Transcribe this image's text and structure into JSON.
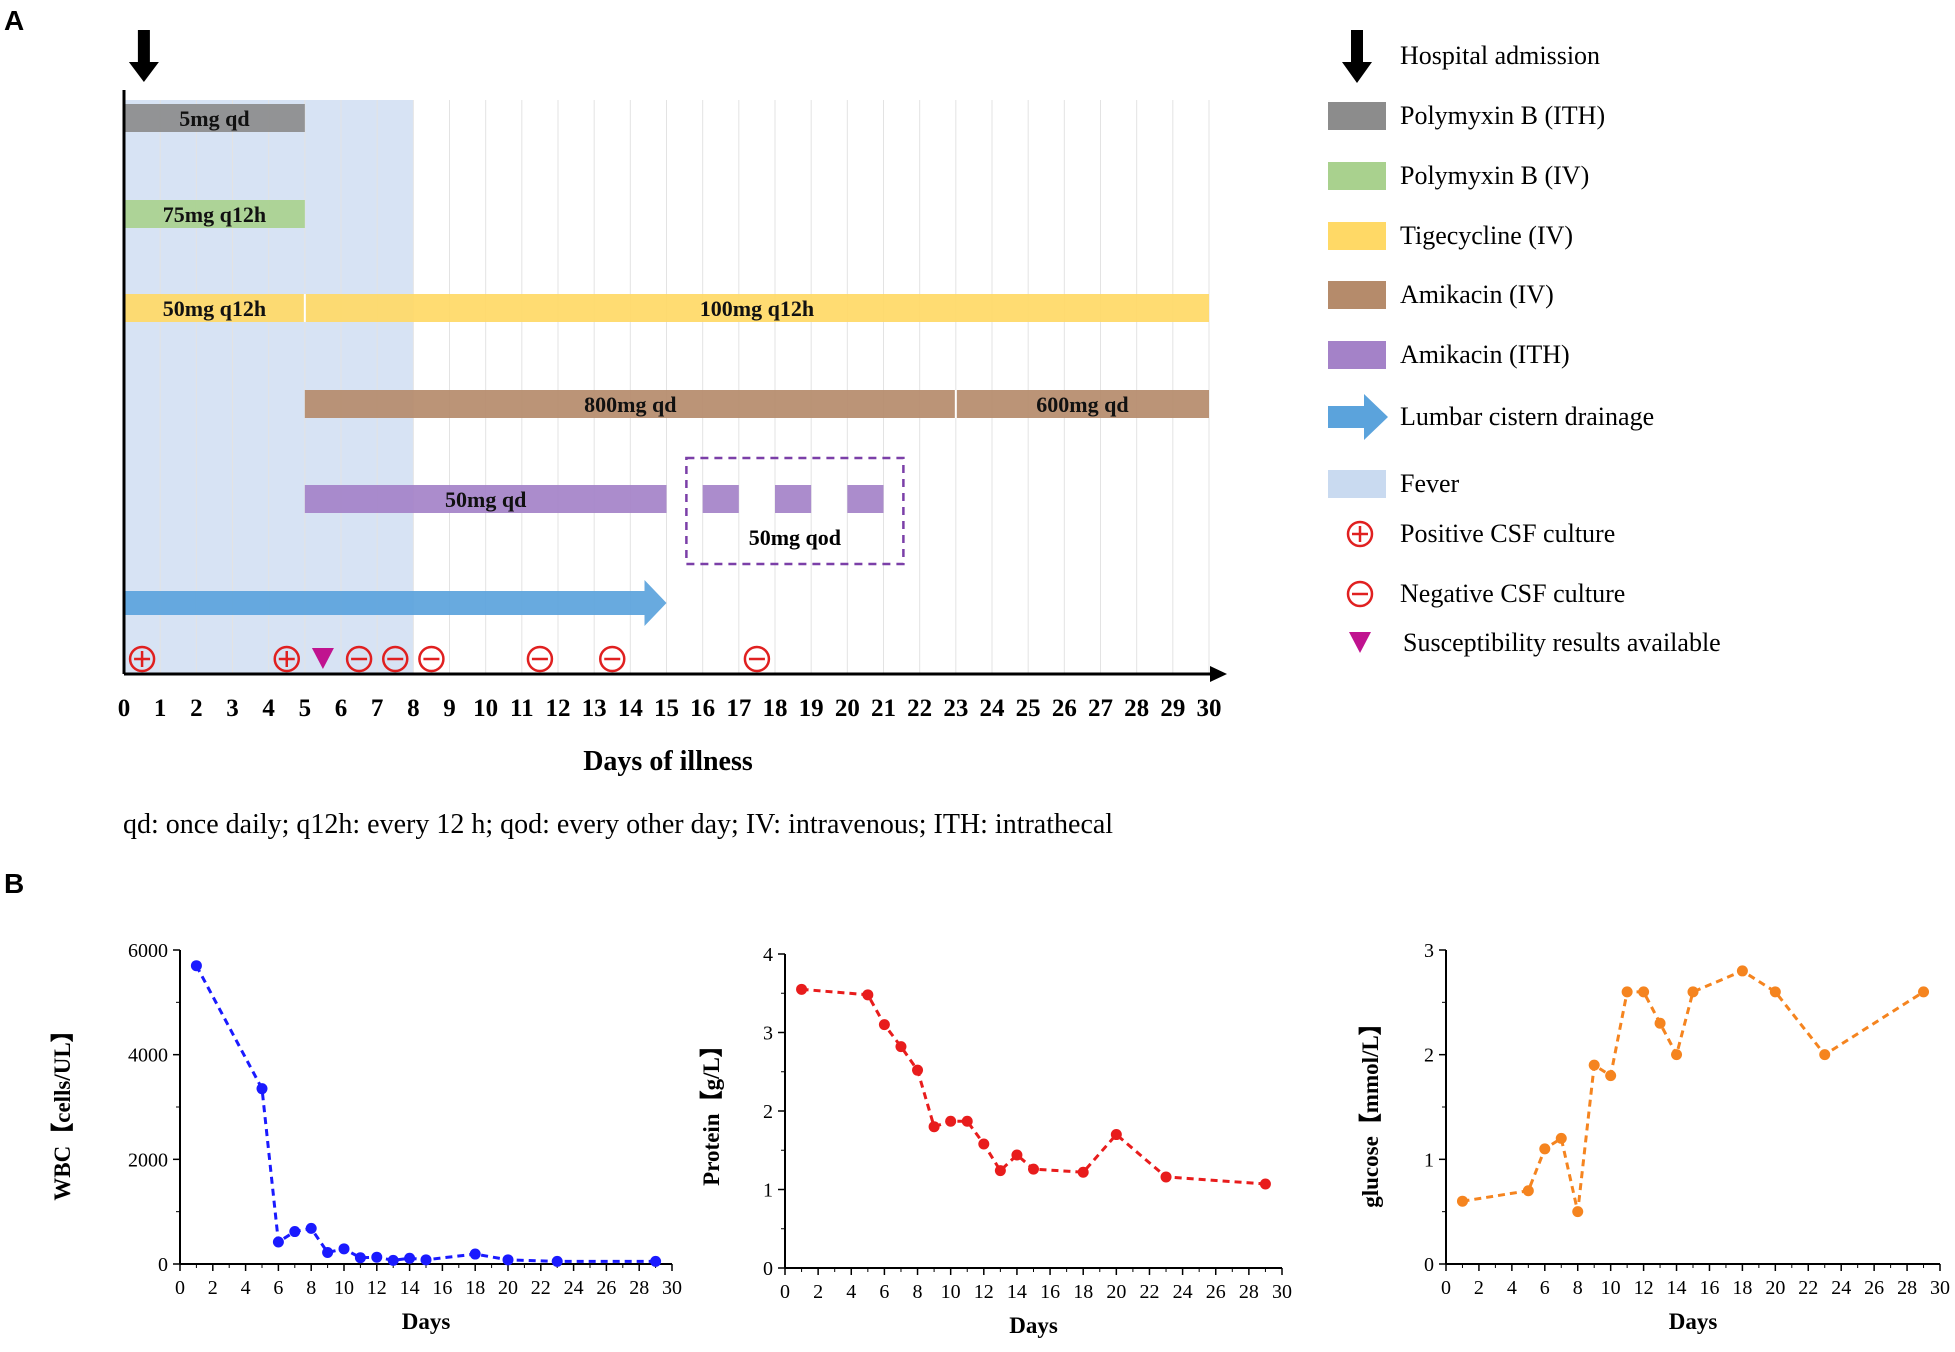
{
  "panel_a": {
    "label": "A",
    "xlabel": "Days of illness",
    "footnote": "qd: once daily; q12h: every 12 h; qod: every other day; IV: intravenous; ITH: intrathecal",
    "qod_label": "50mg qod",
    "legend": [
      {
        "key": "admission",
        "label": "Hospital admission",
        "icon": "down-arrow-icon",
        "color": "#000000"
      },
      {
        "key": "pmb_ith",
        "label": "Polymyxin B (ITH)",
        "icon": "swatch",
        "color": "#8c8c8c"
      },
      {
        "key": "pmb_iv",
        "label": "Polymyxin B (IV)",
        "icon": "swatch",
        "color": "#a9d18e"
      },
      {
        "key": "tige",
        "label": "Tigecycline (IV)",
        "icon": "swatch",
        "color": "#ffd966"
      },
      {
        "key": "ami_iv",
        "label": "Amikacin (IV)",
        "icon": "swatch",
        "color": "#b58b6b"
      },
      {
        "key": "ami_ith",
        "label": "Amikacin (ITH)",
        "icon": "swatch",
        "color": "#a482c8"
      },
      {
        "key": "drain",
        "label": "Lumbar cistern drainage",
        "icon": "right-arrow-icon",
        "color": "#5ba3dc"
      },
      {
        "key": "fever",
        "label": "Fever",
        "icon": "swatch",
        "color": "#c9daf0"
      },
      {
        "key": "pos",
        "label": "Positive CSF culture",
        "icon": "plus-circle-icon",
        "color": "#e02020"
      },
      {
        "key": "neg",
        "label": "Negative CSF culture",
        "icon": "minus-circle-icon",
        "color": "#e02020"
      },
      {
        "key": "susc",
        "label": "Susceptibility results available",
        "icon": "down-triangle-icon",
        "color": "#c0138f"
      }
    ]
  },
  "chart_data": [
    {
      "type": "timeline",
      "xlabel": "Days of illness",
      "xlim": [
        0,
        30
      ],
      "ticks": [
        "0",
        "1",
        "2",
        "3",
        "4",
        "5",
        "6",
        "7",
        "8",
        "9",
        "10",
        "11",
        "12",
        "13",
        "14",
        "15",
        "16",
        "17",
        "18",
        "19",
        "20",
        "21",
        "22",
        "23",
        "24",
        "25",
        "26",
        "27",
        "28",
        "29",
        "30"
      ],
      "admission_day": 0.55,
      "fever": {
        "start": 0,
        "end": 8
      },
      "tracks": [
        {
          "drug": "Polymyxin B (ITH)",
          "color": "#8c8c8c",
          "segments": [
            {
              "start": 0,
              "end": 5,
              "label": "5mg qd"
            }
          ]
        },
        {
          "drug": "Polymyxin B (IV)",
          "color": "#a9d18e",
          "segments": [
            {
              "start": 0,
              "end": 5,
              "label": "75mg q12h"
            }
          ]
        },
        {
          "drug": "Tigecycline (IV)",
          "color": "#ffd966",
          "segments": [
            {
              "start": 0,
              "end": 5,
              "label": "50mg q12h"
            },
            {
              "start": 5,
              "end": 30,
              "label": "100mg q12h"
            }
          ]
        },
        {
          "drug": "Amikacin (IV)",
          "color": "#b58b6b",
          "segments": [
            {
              "start": 5,
              "end": 23,
              "label": "800mg qd"
            },
            {
              "start": 23,
              "end": 30,
              "label": "600mg qd"
            }
          ]
        },
        {
          "drug": "Amikacin (ITH)",
          "color": "#a482c8",
          "segments": [
            {
              "start": 5,
              "end": 15,
              "label": "50mg qd"
            },
            {
              "start": 16,
              "end": 17,
              "label": ""
            },
            {
              "start": 18,
              "end": 19,
              "label": ""
            },
            {
              "start": 20,
              "end": 21,
              "label": ""
            }
          ]
        }
      ],
      "drainage": {
        "start": 0,
        "end": 15
      },
      "cultures": [
        {
          "day": 0.5,
          "result": "positive"
        },
        {
          "day": 4.5,
          "result": "positive"
        },
        {
          "day": 6.5,
          "result": "negative"
        },
        {
          "day": 7.5,
          "result": "negative"
        },
        {
          "day": 8.5,
          "result": "negative"
        },
        {
          "day": 11.5,
          "result": "negative"
        },
        {
          "day": 13.5,
          "result": "negative"
        },
        {
          "day": 17.5,
          "result": "negative"
        }
      ],
      "susceptibility_day": 5.5
    },
    {
      "type": "line",
      "title": "",
      "panel_label": "B",
      "xlabel": "Days",
      "ylabel": "WBC【cells/UL】",
      "color": "#1a1aff",
      "xlim": [
        0,
        30
      ],
      "ylim": [
        0,
        6000
      ],
      "xticks": [
        "0",
        "2",
        "4",
        "6",
        "8",
        "10",
        "12",
        "14",
        "16",
        "18",
        "20",
        "22",
        "24",
        "26",
        "28",
        "30"
      ],
      "yticks": [
        "0",
        "2000",
        "4000",
        "6000"
      ],
      "x": [
        1,
        5,
        6,
        7,
        8,
        9,
        10,
        11,
        12,
        13,
        14,
        15,
        18,
        20,
        23,
        29
      ],
      "y": [
        5700,
        3350,
        420,
        620,
        680,
        220,
        290,
        120,
        130,
        70,
        110,
        80,
        190,
        80,
        50,
        50
      ]
    },
    {
      "type": "line",
      "title": "",
      "xlabel": "Days",
      "ylabel": "Protein【g/L】",
      "color": "#e81c1c",
      "xlim": [
        0,
        30
      ],
      "ylim": [
        0,
        4
      ],
      "xticks": [
        "0",
        "2",
        "4",
        "6",
        "8",
        "10",
        "12",
        "14",
        "16",
        "18",
        "20",
        "22",
        "24",
        "26",
        "28",
        "30"
      ],
      "yticks": [
        "0",
        "1",
        "2",
        "3",
        "4"
      ],
      "x": [
        1,
        5,
        6,
        7,
        8,
        9,
        10,
        11,
        12,
        13,
        14,
        15,
        18,
        20,
        23,
        29
      ],
      "y": [
        3.55,
        3.48,
        3.1,
        2.82,
        2.52,
        1.8,
        1.87,
        1.87,
        1.58,
        1.24,
        1.44,
        1.26,
        1.22,
        1.7,
        1.16,
        1.07
      ]
    },
    {
      "type": "line",
      "title": "",
      "xlabel": "Days",
      "ylabel": "glucose【mmol/L】",
      "color": "#f5841f",
      "xlim": [
        0,
        30
      ],
      "ylim": [
        0,
        3
      ],
      "xticks": [
        "0",
        "2",
        "4",
        "6",
        "8",
        "10",
        "12",
        "14",
        "16",
        "18",
        "20",
        "22",
        "24",
        "26",
        "28",
        "30"
      ],
      "yticks": [
        "0",
        "1",
        "2",
        "3"
      ],
      "x": [
        1,
        5,
        6,
        7,
        8,
        9,
        10,
        11,
        12,
        13,
        14,
        15,
        18,
        20,
        23,
        29
      ],
      "y": [
        0.6,
        0.7,
        1.1,
        1.2,
        0.5,
        1.9,
        1.8,
        2.6,
        2.6,
        2.3,
        2.0,
        2.6,
        2.8,
        2.6,
        2.0,
        2.6
      ]
    }
  ]
}
